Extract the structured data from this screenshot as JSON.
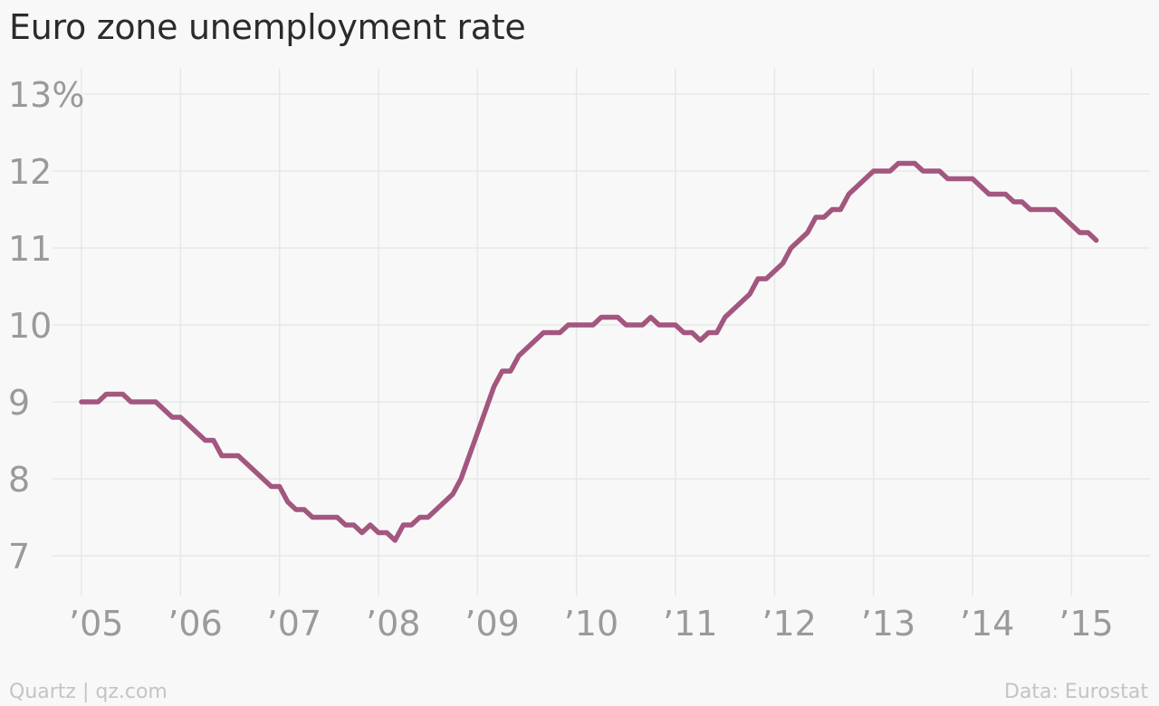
{
  "chart_data": {
    "type": "line",
    "title": "Euro zone unemployment rate",
    "xlabel": "",
    "ylabel": "",
    "xlim": [
      2005.0,
      2015.25
    ],
    "ylim": [
      7,
      13
    ],
    "y_ticks": [
      7,
      8,
      9,
      10,
      11,
      12,
      13
    ],
    "y_tick_labels": [
      "7",
      "8",
      "9",
      "10",
      "11",
      "12",
      "13%"
    ],
    "x_ticks": [
      2005,
      2006,
      2007,
      2008,
      2009,
      2010,
      2011,
      2012,
      2013,
      2014,
      2015
    ],
    "x_tick_labels": [
      "’05",
      "’06",
      "’07",
      "’08",
      "’09",
      "’10",
      "’11",
      "’12",
      "’13",
      "’14",
      "’15"
    ],
    "grid": true,
    "legend": "none",
    "line_color": "#a3567e",
    "series": [
      {
        "values": [
          [
            2005.0,
            9.0
          ],
          [
            2005.167,
            9.0
          ],
          [
            2005.25,
            9.1
          ],
          [
            2005.417,
            9.1
          ],
          [
            2005.5,
            9.0
          ],
          [
            2005.75,
            9.0
          ],
          [
            2005.917,
            8.8
          ],
          [
            2006.0,
            8.8
          ],
          [
            2006.25,
            8.5
          ],
          [
            2006.333,
            8.5
          ],
          [
            2006.417,
            8.3
          ],
          [
            2006.583,
            8.3
          ],
          [
            2006.917,
            7.9
          ],
          [
            2007.0,
            7.9
          ],
          [
            2007.083,
            7.7
          ],
          [
            2007.167,
            7.6
          ],
          [
            2007.25,
            7.6
          ],
          [
            2007.333,
            7.5
          ],
          [
            2007.583,
            7.5
          ],
          [
            2007.667,
            7.4
          ],
          [
            2007.75,
            7.4
          ],
          [
            2007.833,
            7.3
          ],
          [
            2007.917,
            7.4
          ],
          [
            2008.0,
            7.3
          ],
          [
            2008.083,
            7.3
          ],
          [
            2008.167,
            7.2
          ],
          [
            2008.25,
            7.4
          ],
          [
            2008.333,
            7.4
          ],
          [
            2008.417,
            7.5
          ],
          [
            2008.5,
            7.5
          ],
          [
            2008.75,
            7.8
          ],
          [
            2008.833,
            8.0
          ],
          [
            2009.0,
            8.6
          ],
          [
            2009.167,
            9.2
          ],
          [
            2009.25,
            9.4
          ],
          [
            2009.333,
            9.4
          ],
          [
            2009.417,
            9.6
          ],
          [
            2009.667,
            9.9
          ],
          [
            2009.833,
            9.9
          ],
          [
            2009.917,
            10.0
          ],
          [
            2010.167,
            10.0
          ],
          [
            2010.25,
            10.1
          ],
          [
            2010.417,
            10.1
          ],
          [
            2010.5,
            10.0
          ],
          [
            2010.667,
            10.0
          ],
          [
            2010.75,
            10.1
          ],
          [
            2010.833,
            10.0
          ],
          [
            2011.0,
            10.0
          ],
          [
            2011.083,
            9.9
          ],
          [
            2011.167,
            9.9
          ],
          [
            2011.25,
            9.8
          ],
          [
            2011.333,
            9.9
          ],
          [
            2011.417,
            9.9
          ],
          [
            2011.5,
            10.1
          ],
          [
            2011.75,
            10.4
          ],
          [
            2011.833,
            10.6
          ],
          [
            2011.917,
            10.6
          ],
          [
            2012.083,
            10.8
          ],
          [
            2012.167,
            11.0
          ],
          [
            2012.333,
            11.2
          ],
          [
            2012.417,
            11.4
          ],
          [
            2012.5,
            11.4
          ],
          [
            2012.583,
            11.5
          ],
          [
            2012.667,
            11.5
          ],
          [
            2012.75,
            11.7
          ],
          [
            2012.917,
            11.9
          ],
          [
            2013.0,
            12.0
          ],
          [
            2013.167,
            12.0
          ],
          [
            2013.25,
            12.1
          ],
          [
            2013.417,
            12.1
          ],
          [
            2013.5,
            12.0
          ],
          [
            2013.667,
            12.0
          ],
          [
            2013.75,
            11.9
          ],
          [
            2014.0,
            11.9
          ],
          [
            2014.167,
            11.7
          ],
          [
            2014.333,
            11.7
          ],
          [
            2014.417,
            11.6
          ],
          [
            2014.5,
            11.6
          ],
          [
            2014.583,
            11.5
          ],
          [
            2014.833,
            11.5
          ],
          [
            2015.0,
            11.3
          ],
          [
            2015.083,
            11.2
          ],
          [
            2015.167,
            11.2
          ],
          [
            2015.25,
            11.1
          ]
        ]
      }
    ]
  },
  "footer": {
    "source_left": "Quartz | qz.com",
    "source_right": "Data: Eurostat"
  }
}
